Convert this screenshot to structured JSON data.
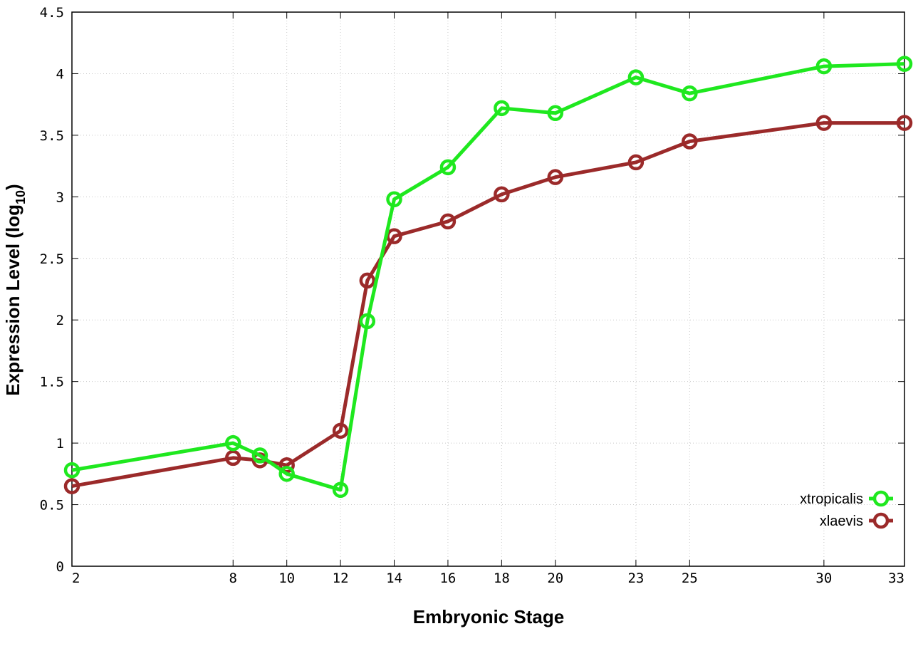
{
  "chart_data": {
    "type": "line",
    "title": "",
    "xlabel": "Embryonic Stage",
    "ylabel_main": "Expression Level (log",
    "ylabel_sub": "10",
    "ylabel_close": ")",
    "xlim": [
      2,
      33
    ],
    "ylim": [
      0,
      4.5
    ],
    "x_ticks": [
      2,
      8,
      10,
      12,
      14,
      16,
      18,
      20,
      23,
      25,
      30,
      33
    ],
    "x_tick_labels": [
      "2",
      "8",
      "10",
      "12",
      "14",
      "16",
      "18",
      "20",
      "23",
      "25",
      "30",
      "33"
    ],
    "y_ticks": [
      0,
      0.5,
      1,
      1.5,
      2,
      2.5,
      3,
      3.5,
      4,
      4.5
    ],
    "y_tick_labels": [
      "0",
      "0.5",
      "1",
      "1.5",
      "2",
      "2.5",
      "3",
      "3.5",
      "4",
      "4.5"
    ],
    "grid": true,
    "legend_position": "bottom-right",
    "series": [
      {
        "name": "xtropicalis",
        "color": "#1fe81f",
        "x": [
          2,
          8,
          9,
          10,
          12,
          13,
          14,
          16,
          18,
          20,
          23,
          25,
          30,
          33
        ],
        "values": [
          0.78,
          1.0,
          0.9,
          0.75,
          0.62,
          1.99,
          2.98,
          3.24,
          3.72,
          3.68,
          3.97,
          3.84,
          4.06,
          4.08
        ]
      },
      {
        "name": "xlaevis",
        "color": "#9b2a2a",
        "x": [
          2,
          8,
          9,
          10,
          12,
          13,
          14,
          16,
          18,
          20,
          23,
          25,
          30,
          33
        ],
        "values": [
          0.65,
          0.88,
          0.86,
          0.82,
          1.1,
          2.32,
          2.68,
          2.8,
          3.02,
          3.16,
          3.28,
          3.45,
          3.6,
          3.6
        ]
      }
    ]
  }
}
